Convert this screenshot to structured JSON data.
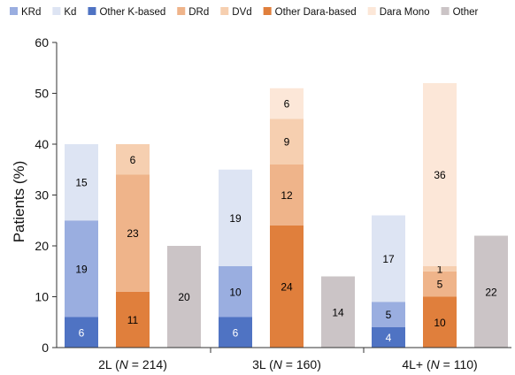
{
  "chart_data": {
    "type": "bar",
    "stacked": true,
    "ylabel": "Patients (%)",
    "ylim": [
      0,
      60
    ],
    "yticks": [
      0,
      10,
      20,
      30,
      40,
      50,
      60
    ],
    "grid": false,
    "legend_position": "top",
    "legend": [
      {
        "name": "KRd",
        "color": "#9aaee0"
      },
      {
        "name": "Kd",
        "color": "#dde4f3"
      },
      {
        "name": "Other K-based",
        "color": "#4f73c3"
      },
      {
        "name": "DRd",
        "color": "#efb48a"
      },
      {
        "name": "DVd",
        "color": "#f6cfb0"
      },
      {
        "name": "Other Dara-based",
        "color": "#e07f3c"
      },
      {
        "name": "Dara Mono",
        "color": "#fce7d8"
      },
      {
        "name": "Other",
        "color": "#cbc4c6"
      }
    ],
    "groups": [
      {
        "label": "2L",
        "n_text": "214",
        "bars": [
          {
            "segments": [
              {
                "series": "Other K-based",
                "value": 6,
                "label": "6",
                "label_color": "#ffffff"
              },
              {
                "series": "KRd",
                "value": 19,
                "label": "19",
                "label_color": "#000000"
              },
              {
                "series": "Kd",
                "value": 15,
                "label": "15",
                "label_color": "#000000"
              }
            ]
          },
          {
            "segments": [
              {
                "series": "Other Dara-based",
                "value": 11,
                "label": "11",
                "label_color": "#000000"
              },
              {
                "series": "DRd",
                "value": 23,
                "label": "23",
                "label_color": "#000000"
              },
              {
                "series": "DVd",
                "value": 6,
                "label": "6",
                "label_color": "#000000"
              }
            ]
          },
          {
            "segments": [
              {
                "series": "Other",
                "value": 20,
                "label": "20",
                "label_color": "#000000"
              }
            ]
          }
        ]
      },
      {
        "label": "3L",
        "n_text": "160",
        "bars": [
          {
            "segments": [
              {
                "series": "Other K-based",
                "value": 6,
                "label": "6",
                "label_color": "#ffffff"
              },
              {
                "series": "KRd",
                "value": 10,
                "label": "10",
                "label_color": "#000000"
              },
              {
                "series": "Kd",
                "value": 19,
                "label": "19",
                "label_color": "#000000"
              }
            ]
          },
          {
            "segments": [
              {
                "series": "Other Dara-based",
                "value": 24,
                "label": "24",
                "label_color": "#000000"
              },
              {
                "series": "DRd",
                "value": 12,
                "label": "12",
                "label_color": "#000000"
              },
              {
                "series": "DVd",
                "value": 9,
                "label": "9",
                "label_color": "#000000"
              },
              {
                "series": "Dara Mono",
                "value": 6,
                "label": "6",
                "label_color": "#000000"
              }
            ]
          },
          {
            "segments": [
              {
                "series": "Other",
                "value": 14,
                "label": "14",
                "label_color": "#000000"
              }
            ]
          }
        ]
      },
      {
        "label": "4L+",
        "n_text": "110",
        "bars": [
          {
            "segments": [
              {
                "series": "Other K-based",
                "value": 4,
                "label": "4",
                "label_color": "#ffffff"
              },
              {
                "series": "KRd",
                "value": 5,
                "label": "5",
                "label_color": "#000000"
              },
              {
                "series": "Kd",
                "value": 17,
                "label": "17",
                "label_color": "#000000"
              }
            ]
          },
          {
            "segments": [
              {
                "series": "Other Dara-based",
                "value": 10,
                "label": "10",
                "label_color": "#000000"
              },
              {
                "series": "DRd",
                "value": 5,
                "label": "5",
                "label_color": "#000000"
              },
              {
                "series": "DVd",
                "value": 1,
                "label": "1",
                "label_color": "#000000"
              },
              {
                "series": "Dara Mono",
                "value": 36,
                "label": "36",
                "label_color": "#000000"
              }
            ]
          },
          {
            "segments": [
              {
                "series": "Other",
                "value": 22,
                "label": "22",
                "label_color": "#000000"
              }
            ]
          }
        ]
      }
    ]
  }
}
